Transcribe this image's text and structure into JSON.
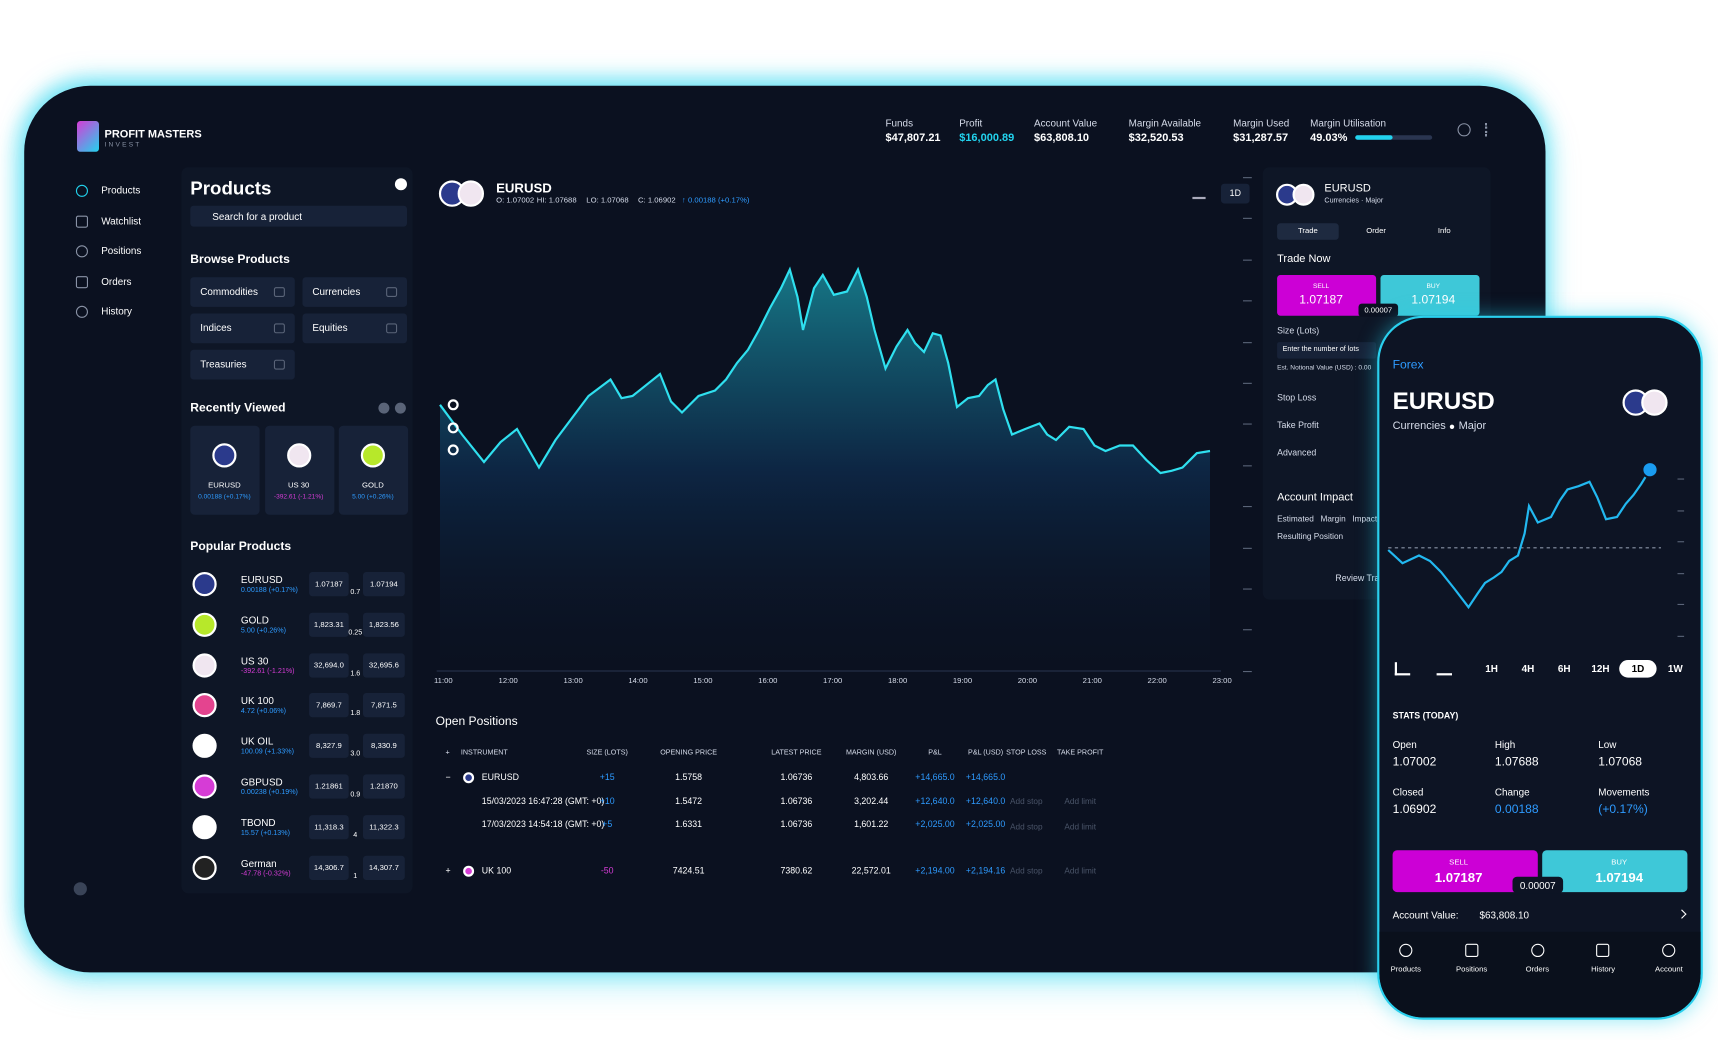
{
  "brand": {
    "name": "PROFIT MASTERS",
    "tagline": "INVEST"
  },
  "account_bar": [
    {
      "label": "Funds",
      "value": "$47,807.21"
    },
    {
      "label": "Profit",
      "value": "$16,000.89"
    },
    {
      "label": "Account Value",
      "value": "$63,808.10"
    },
    {
      "label": "Margin Available",
      "value": "$32,520.53"
    },
    {
      "label": "Margin Used",
      "value": "$31,287.57"
    },
    {
      "label": "Margin Utilisation",
      "value": "49.03%"
    }
  ],
  "sidebar": [
    "Products",
    "Watchlist",
    "Positions",
    "Orders",
    "History"
  ],
  "products_panel": {
    "title": "Products",
    "search": "Search for a product",
    "browse_title": "Browse Products",
    "browse": [
      "Commodities",
      "Currencies",
      "Indices",
      "Equities",
      "Treasuries"
    ],
    "recent_title": "Recently Viewed",
    "recent": [
      {
        "name": "EURUSD",
        "change": "0.00188 (+0.17%)"
      },
      {
        "name": "US 30",
        "change": "-392.61 (-1.21%)"
      },
      {
        "name": "GOLD",
        "change": "5.00 (+0.26%)"
      }
    ],
    "popular_title": "Popular Products",
    "popular": [
      {
        "name": "EURUSD",
        "change": "0.00188 (+0.17%)",
        "sell": "1.07187",
        "spread": "0.7",
        "buy": "1.07194"
      },
      {
        "name": "GOLD",
        "change": "5.00 (+0.26%)",
        "sell": "1,823.31",
        "spread": "0.25",
        "buy": "1,823.56"
      },
      {
        "name": "US 30",
        "change": "-392.61 (-1.21%)",
        "sell": "32,694.0",
        "spread": "1.6",
        "buy": "32,695.6"
      },
      {
        "name": "UK 100",
        "change": "4.72 (+0.06%)",
        "sell": "7,869.7",
        "spread": "1.8",
        "buy": "7,871.5"
      },
      {
        "name": "UK OIL",
        "change": "100.09 (+1.33%)",
        "sell": "8,327.9",
        "spread": "3.0",
        "buy": "8,330.9"
      },
      {
        "name": "GBPUSD",
        "change": "0.00238 (+0.19%)",
        "sell": "1.21861",
        "spread": "0.9",
        "buy": "1.21870"
      },
      {
        "name": "TBOND",
        "change": "15.57 (+0.13%)",
        "sell": "11,318.3",
        "spread": "4",
        "buy": "11,322.3"
      },
      {
        "name": "German",
        "change": "-47.78 (-0.32%)",
        "sell": "14,306.7",
        "spread": "1",
        "buy": "14,307.7"
      }
    ]
  },
  "chart": {
    "symbol": "EURUSD",
    "ohlc": [
      "O: 1.07002",
      "HI: 1.07688",
      "LO: 1.07068",
      "C: 1.06902"
    ],
    "change": "↑ 0.00188 (+0.17%)",
    "timeframe": "1D",
    "times": [
      "11:00",
      "12:00",
      "13:00",
      "14:00",
      "15:00",
      "16:00",
      "17:00",
      "18:00",
      "19:00",
      "20:00",
      "21:00",
      "22:00",
      "23:00"
    ]
  },
  "positions": {
    "title": "Open Positions",
    "columns": [
      "+",
      "INSTRUMENT",
      "SIZE (LOTS)",
      "OPENING PRICE",
      "LATEST PRICE",
      "MARGIN (USD)",
      "P&L",
      "P&L (USD)",
      "STOP LOSS",
      "TAKE PROFIT"
    ],
    "rows": [
      {
        "toggle": "−",
        "instrument": "EURUSD",
        "size": "+15",
        "opening": "1.5758",
        "latest": "1.06736",
        "margin": "4,803.66",
        "pnl": "+14,665.0",
        "pnl_usd": "+14,665.0"
      },
      {
        "instrument": "15/03/2023 16:47:28 (GMT: +0)",
        "size": "+10",
        "opening": "1.5472",
        "latest": "1.06736",
        "margin": "3,202.44",
        "pnl": "+12,640.0",
        "pnl_usd": "+12,640.0",
        "stop": "Add stop",
        "limit": "Add limit"
      },
      {
        "instrument": "17/03/2023 14:54:18 (GMT: +0)",
        "size": "+5",
        "opening": "1.6331",
        "latest": "1.06736",
        "margin": "1,601.22",
        "pnl": "+2,025.00",
        "pnl_usd": "+2,025.00",
        "stop": "Add stop",
        "limit": "Add limit"
      },
      {
        "toggle": "+",
        "instrument": "UK 100",
        "size": "-50",
        "opening": "7424.51",
        "latest": "7380.62",
        "margin": "22,572.01",
        "pnl": "+2,194.00",
        "pnl_usd": "+2,194.16",
        "stop": "Add stop",
        "limit": "Add limit"
      }
    ]
  },
  "trade_panel": {
    "symbol": "EURUSD",
    "subtitle": "Currencies · Major",
    "tabs": [
      "Trade",
      "Order",
      "Info"
    ],
    "trade_now": "Trade Now",
    "sell_label": "SELL",
    "sell_price": "1.07187",
    "buy_label": "BUY",
    "buy_price": "1.07194",
    "spread": "0.00007",
    "size_label": "Size (Lots)",
    "size_placeholder": "Enter the number of lots",
    "notional": "Est. Notional Value (USD) : 0.00",
    "options": [
      "Stop Loss",
      "Take Profit",
      "Advanced"
    ],
    "impact_title": "Account Impact",
    "impact_rows": [
      "Estimated Margin Impact",
      "Resulting Position"
    ],
    "review": "Review Trade"
  },
  "mobile": {
    "back": "Forex",
    "symbol": "EURUSD",
    "category": "Currencies",
    "subcategory": "Major",
    "timeframes": [
      "1H",
      "4H",
      "6H",
      "12H",
      "1D",
      "1W"
    ],
    "active_timeframe": "1D",
    "stats_title": "STATS (TODAY)",
    "stats": [
      {
        "label": "Open",
        "value": "1.07002"
      },
      {
        "label": "High",
        "value": "1.07688"
      },
      {
        "label": "Low",
        "value": "1.07068"
      },
      {
        "label": "Closed",
        "value": "1.06902"
      },
      {
        "label": "Change",
        "value": "0.00188"
      },
      {
        "label": "Movements",
        "value": "(+0.17%)"
      }
    ],
    "sell_label": "SELL",
    "sell_price": "1.07187",
    "buy_label": "BUY",
    "buy_price": "1.07194",
    "spread": "0.00007",
    "account_label": "Account Value:",
    "account_value": "$63,808.10",
    "nav": [
      "Products",
      "Positions",
      "Orders",
      "History",
      "Account"
    ]
  }
}
